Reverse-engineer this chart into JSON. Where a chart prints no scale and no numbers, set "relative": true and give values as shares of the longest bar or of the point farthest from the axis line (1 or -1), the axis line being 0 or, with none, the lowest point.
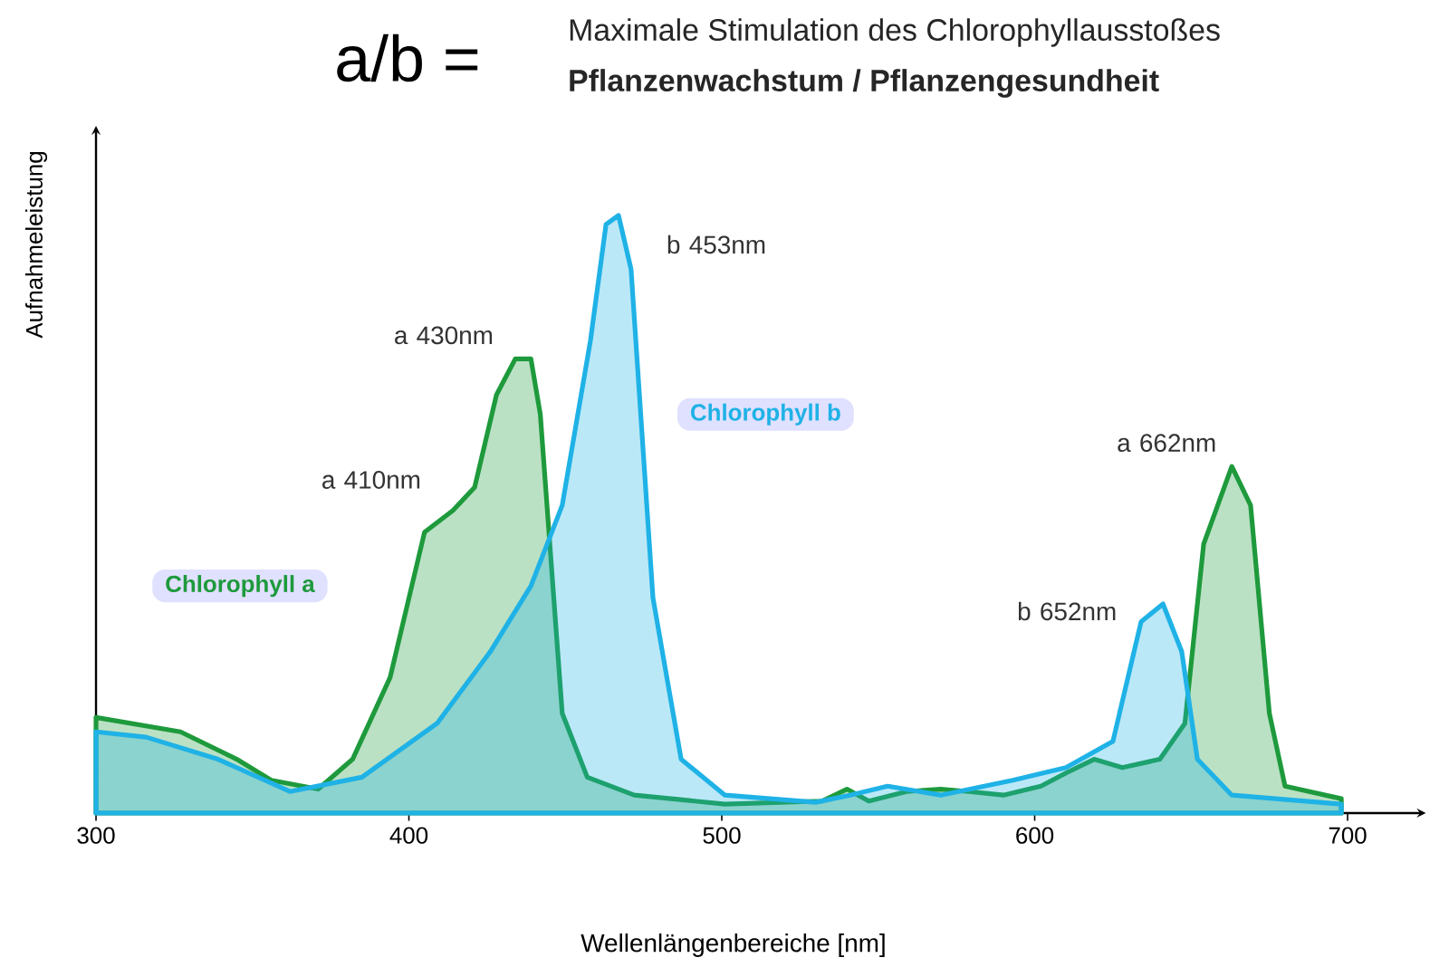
{
  "chart_data": {
    "type": "area",
    "relative": true,
    "title": "a/b =",
    "subtitle": "Maximale  Stimulation des Chlorophyllausstoßes",
    "xlabel": "Wellenlängenbereiche    [nm]",
    "ylabel": "Aufnahmeleistung",
    "xlim": [
      300,
      725
    ],
    "xticks": [
      300,
      400,
      500,
      600,
      700
    ],
    "annotations": [
      "Pflanzenwachstum / Pflanzengesundheit",
      {
        "text": "a 410nm",
        "x": 414,
        "y": 0.506
      },
      {
        "text": "a 430nm",
        "x": 436,
        "y": 0.76
      },
      {
        "text": "b 453nm",
        "x": 467,
        "y": 1.0
      },
      {
        "text": "b 652nm",
        "x": 641,
        "y": 0.35
      },
      {
        "text": "a 662nm",
        "x": 663,
        "y": 0.58
      }
    ],
    "series": [
      {
        "name": "Chlorophyll a",
        "color": "#1e9a3c",
        "x": [
          300,
          327,
          345,
          356,
          371,
          382,
          394,
          405,
          414,
          421,
          428,
          434,
          439,
          442,
          449,
          457,
          472,
          501,
          532,
          540,
          547,
          559,
          570,
          579,
          590,
          602,
          610,
          619,
          628,
          640,
          648,
          654,
          663,
          669,
          675,
          680,
          698
        ],
        "values": [
          0.16,
          0.136,
          0.09,
          0.055,
          0.04,
          0.09,
          0.227,
          0.47,
          0.506,
          0.545,
          0.7,
          0.76,
          0.76,
          0.667,
          0.167,
          0.06,
          0.03,
          0.015,
          0.02,
          0.04,
          0.02,
          0.036,
          0.04,
          0.036,
          0.03,
          0.045,
          0.067,
          0.09,
          0.076,
          0.09,
          0.15,
          0.45,
          0.58,
          0.515,
          0.167,
          0.045,
          0.024
        ]
      },
      {
        "name": "Chlorophyll b",
        "color": "#1fb2e6",
        "x": [
          300,
          316,
          339,
          362,
          385,
          409,
          426,
          439,
          449,
          458,
          463,
          467,
          471,
          478,
          487,
          501,
          530,
          541,
          553,
          570,
          593,
          610,
          625,
          634,
          641,
          647,
          652,
          663,
          698
        ],
        "values": [
          0.136,
          0.127,
          0.09,
          0.036,
          0.06,
          0.15,
          0.27,
          0.38,
          0.515,
          0.79,
          0.985,
          1.0,
          0.91,
          0.36,
          0.09,
          0.03,
          0.018,
          0.03,
          0.045,
          0.03,
          0.055,
          0.076,
          0.12,
          0.32,
          0.35,
          0.27,
          0.09,
          0.03,
          0.015
        ]
      }
    ]
  }
}
